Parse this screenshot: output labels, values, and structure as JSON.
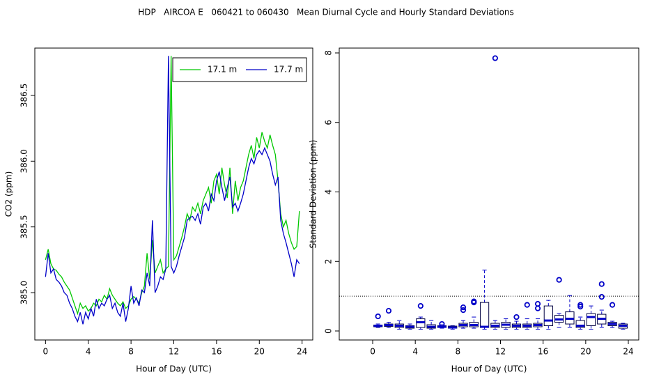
{
  "title": "HDP   AIRCOA E   060421 to 060430   Mean Diurnal Cycle and Hourly Standard Deviations",
  "chart_data": [
    {
      "type": "line",
      "xlabel": "Hour of Day (UTC)",
      "ylabel": "CO2 (ppm)",
      "xlim": [
        -1,
        25
      ],
      "ylim": [
        384.64,
        386.86
      ],
      "xticks": [
        0,
        4,
        8,
        12,
        16,
        20,
        24
      ],
      "yticks": [
        {
          "value": 385,
          "label": "385.0"
        },
        385.5,
        {
          "value": 386,
          "label": "386.0"
        },
        386.5
      ],
      "legend": "topright",
      "x": [
        0,
        0.25,
        0.5,
        0.75,
        1,
        1.25,
        1.5,
        1.75,
        2,
        2.25,
        2.5,
        2.75,
        3,
        3.25,
        3.5,
        3.75,
        4,
        4.25,
        4.5,
        4.75,
        5,
        5.25,
        5.5,
        5.75,
        6,
        6.25,
        6.5,
        6.75,
        7,
        7.25,
        7.5,
        7.75,
        8,
        8.25,
        8.5,
        8.75,
        9,
        9.25,
        9.5,
        9.75,
        10,
        10.25,
        10.5,
        10.75,
        11,
        11.25,
        11.5,
        11.75,
        12,
        12.25,
        12.5,
        12.75,
        13,
        13.25,
        13.5,
        13.75,
        14,
        14.25,
        14.5,
        14.75,
        15,
        15.25,
        15.5,
        15.75,
        16,
        16.25,
        16.5,
        16.75,
        17,
        17.25,
        17.5,
        17.75,
        18,
        18.25,
        18.5,
        18.75,
        19,
        19.25,
        19.5,
        19.75,
        20,
        20.25,
        20.5,
        20.75,
        21,
        21.25,
        21.5,
        21.75,
        22,
        22.25,
        22.5,
        22.75,
        23,
        23.25,
        23.5,
        23.75
      ],
      "series": [
        {
          "name": "17.1 m",
          "color": "#00c800",
          "values": [
            385.25,
            385.33,
            385.22,
            385.18,
            385.17,
            385.14,
            385.12,
            385.08,
            385.05,
            385.02,
            384.96,
            384.9,
            384.84,
            384.92,
            384.88,
            384.9,
            384.86,
            384.88,
            384.92,
            384.9,
            384.95,
            384.93,
            384.98,
            384.95,
            385.03,
            384.98,
            384.95,
            384.92,
            384.9,
            384.93,
            384.88,
            384.9,
            384.95,
            384.97,
            384.95,
            384.92,
            385.0,
            385.05,
            385.3,
            385.1,
            385.4,
            385.15,
            385.2,
            385.25,
            385.15,
            385.18,
            385.2,
            386.8,
            385.25,
            385.28,
            385.35,
            385.42,
            385.5,
            385.6,
            385.55,
            385.65,
            385.62,
            385.68,
            385.6,
            385.7,
            385.75,
            385.8,
            385.68,
            385.85,
            385.9,
            385.75,
            385.95,
            385.82,
            385.72,
            385.95,
            385.6,
            385.85,
            385.7,
            385.8,
            385.85,
            385.95,
            386.05,
            386.12,
            386.02,
            386.18,
            386.1,
            386.22,
            386.15,
            386.1,
            386.2,
            386.12,
            386.05,
            385.85,
            385.6,
            385.5,
            385.55,
            385.45,
            385.38,
            385.33,
            385.35,
            385.62
          ]
        },
        {
          "name": "17.7 m",
          "color": "#0000c8",
          "values": [
            385.12,
            385.3,
            385.15,
            385.18,
            385.1,
            385.08,
            385.05,
            385.0,
            384.98,
            384.92,
            384.88,
            384.82,
            384.78,
            384.85,
            384.76,
            384.85,
            384.8,
            384.88,
            384.82,
            384.95,
            384.88,
            384.92,
            384.9,
            384.95,
            384.98,
            384.88,
            384.92,
            384.85,
            384.82,
            384.92,
            384.78,
            384.88,
            385.05,
            384.92,
            384.96,
            384.9,
            385.02,
            385.0,
            385.15,
            385.05,
            385.55,
            385.0,
            385.05,
            385.12,
            385.1,
            385.18,
            386.8,
            385.2,
            385.15,
            385.2,
            385.28,
            385.35,
            385.42,
            385.55,
            385.57,
            385.58,
            385.55,
            385.6,
            385.52,
            385.65,
            385.68,
            385.62,
            385.75,
            385.7,
            385.85,
            385.92,
            385.8,
            385.7,
            385.8,
            385.88,
            385.65,
            385.68,
            385.62,
            385.68,
            385.75,
            385.85,
            385.95,
            386.02,
            385.98,
            386.05,
            386.08,
            386.05,
            386.1,
            386.05,
            386.0,
            385.9,
            385.82,
            385.88,
            385.55,
            385.45,
            385.38,
            385.3,
            385.22,
            385.12,
            385.25,
            385.22
          ]
        }
      ]
    },
    {
      "type": "box",
      "xlabel": "Hour of Day (UTC)",
      "ylabel": "Standard Deviation (ppm)",
      "xlim": [
        -3.14,
        24.98
      ],
      "ylim": [
        -0.26,
        8.14
      ],
      "xticks": [
        0,
        4,
        8,
        12,
        16,
        20,
        24
      ],
      "yticks": [
        0,
        2,
        4,
        6,
        8
      ],
      "hline": 1,
      "color": "#0000c8",
      "x": [
        0.5,
        1.5,
        2.5,
        3.5,
        4.5,
        5.5,
        6.5,
        7.5,
        8.5,
        9.5,
        10.5,
        11.5,
        12.5,
        13.5,
        14.5,
        15.5,
        16.5,
        17.5,
        18.5,
        19.5,
        20.5,
        21.5,
        22.5,
        23.5
      ],
      "boxes": [
        {
          "whislo": 0.1,
          "q1": 0.12,
          "med": 0.15,
          "q3": 0.17,
          "whishi": 0.2,
          "fliers": [
            0.42
          ]
        },
        {
          "whislo": 0.1,
          "q1": 0.13,
          "med": 0.17,
          "q3": 0.2,
          "whishi": 0.25,
          "fliers": [
            0.58
          ]
        },
        {
          "whislo": 0.05,
          "q1": 0.1,
          "med": 0.15,
          "q3": 0.2,
          "whishi": 0.3,
          "fliers": []
        },
        {
          "whislo": 0.05,
          "q1": 0.08,
          "med": 0.12,
          "q3": 0.15,
          "whishi": 0.2,
          "fliers": []
        },
        {
          "whislo": 0.05,
          "q1": 0.1,
          "med": 0.25,
          "q3": 0.35,
          "whishi": 0.4,
          "fliers": [
            0.72
          ]
        },
        {
          "whislo": 0.05,
          "q1": 0.08,
          "med": 0.12,
          "q3": 0.18,
          "whishi": 0.3,
          "fliers": []
        },
        {
          "whislo": 0.08,
          "q1": 0.1,
          "med": 0.12,
          "q3": 0.15,
          "whishi": 0.18,
          "fliers": [
            0.2
          ]
        },
        {
          "whislo": 0.05,
          "q1": 0.08,
          "med": 0.1,
          "q3": 0.14,
          "whishi": 0.15,
          "fliers": []
        },
        {
          "whislo": 0.08,
          "q1": 0.12,
          "med": 0.17,
          "q3": 0.22,
          "whishi": 0.3,
          "fliers": [
            0.6,
            0.68
          ]
        },
        {
          "whislo": 0.08,
          "q1": 0.12,
          "med": 0.17,
          "q3": 0.25,
          "whishi": 0.4,
          "fliers": [
            0.82,
            0.85
          ]
        },
        {
          "whislo": 0.05,
          "q1": 0.1,
          "med": 0.12,
          "q3": 0.82,
          "whishi": 1.75,
          "fliers": []
        },
        {
          "whislo": 0.05,
          "q1": 0.1,
          "med": 0.15,
          "q3": 0.22,
          "whishi": 0.3,
          "fliers": [
            7.85
          ]
        },
        {
          "whislo": 0.05,
          "q1": 0.1,
          "med": 0.18,
          "q3": 0.25,
          "whishi": 0.35,
          "fliers": []
        },
        {
          "whislo": 0.05,
          "q1": 0.1,
          "med": 0.15,
          "q3": 0.2,
          "whishi": 0.28,
          "fliers": [
            0.4
          ]
        },
        {
          "whislo": 0.05,
          "q1": 0.1,
          "med": 0.15,
          "q3": 0.2,
          "whishi": 0.35,
          "fliers": [
            0.75
          ]
        },
        {
          "whislo": 0.05,
          "q1": 0.12,
          "med": 0.17,
          "q3": 0.22,
          "whishi": 0.35,
          "fliers": [
            0.65,
            0.78
          ]
        },
        {
          "whislo": 0.05,
          "q1": 0.15,
          "med": 0.3,
          "q3": 0.72,
          "whishi": 0.88,
          "fliers": []
        },
        {
          "whislo": 0.1,
          "q1": 0.25,
          "med": 0.33,
          "q3": 0.45,
          "whishi": 0.5,
          "fliers": [
            1.47
          ]
        },
        {
          "whislo": 0.1,
          "q1": 0.2,
          "med": 0.35,
          "q3": 0.55,
          "whishi": 1.02,
          "fliers": []
        },
        {
          "whislo": 0.05,
          "q1": 0.1,
          "med": 0.15,
          "q3": 0.3,
          "whishi": 0.4,
          "fliers": [
            0.7,
            0.75
          ]
        },
        {
          "whislo": 0.05,
          "q1": 0.15,
          "med": 0.4,
          "q3": 0.5,
          "whishi": 0.72,
          "fliers": []
        },
        {
          "whislo": 0.1,
          "q1": 0.2,
          "med": 0.35,
          "q3": 0.48,
          "whishi": 0.6,
          "fliers": [
            0.98,
            1.35
          ]
        },
        {
          "whislo": 0.1,
          "q1": 0.15,
          "med": 0.2,
          "q3": 0.25,
          "whishi": 0.28,
          "fliers": [
            0.75
          ]
        },
        {
          "whislo": 0.05,
          "q1": 0.08,
          "med": 0.15,
          "q3": 0.2,
          "whishi": 0.22,
          "fliers": []
        }
      ]
    }
  ]
}
